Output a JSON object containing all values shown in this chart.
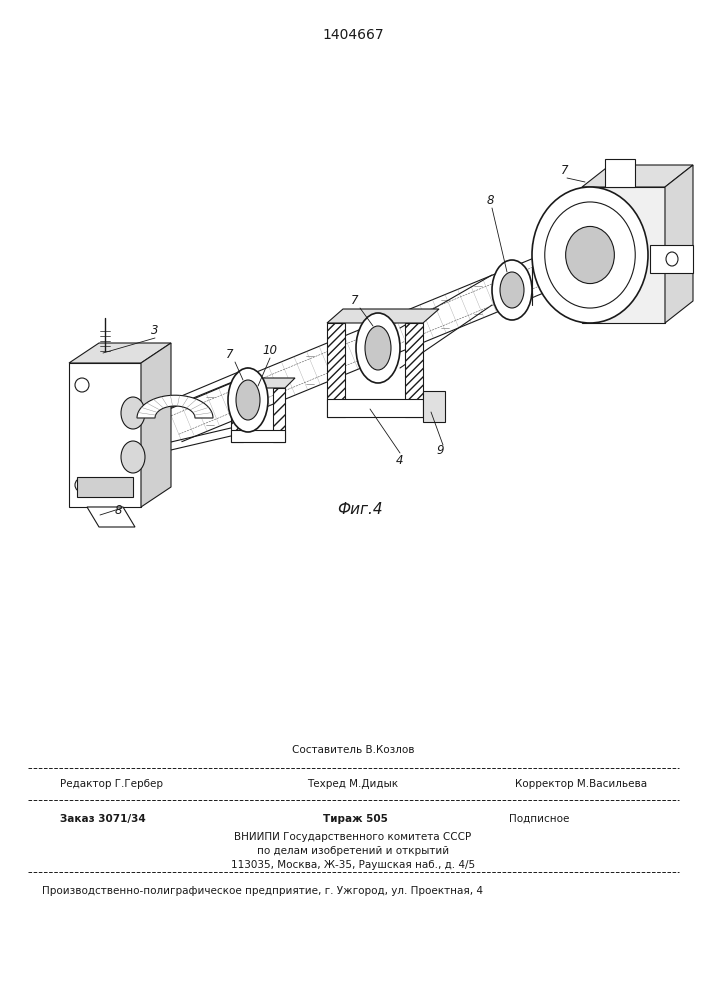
{
  "patent_number": "1404667",
  "fig_label": "Фиг.4",
  "bg_color": "#ffffff",
  "line_color": "#1a1a1a",
  "footer": {
    "sestavitel_label": "Составитель В.Козлов",
    "redaktor_label": "Редактор Г.Гербер",
    "tehred_label": "Техред М.Дидык",
    "korrektor_label": "Корректор М.Васильева",
    "zakaz": "Заказ 3071/34",
    "tirazh": "Тираж 505",
    "podpisnoe": "Подписное",
    "vniip1": "ВНИИПИ Государственного комитета СССР",
    "vniip2": "по делам изобретений и открытий",
    "vniip3": "113035, Москва, Ж-35, Раушская наб., д. 4/5",
    "proizv": "Производственно-полиграфическое предприятие, г. Ужгород, ул. Проектная, 4"
  }
}
